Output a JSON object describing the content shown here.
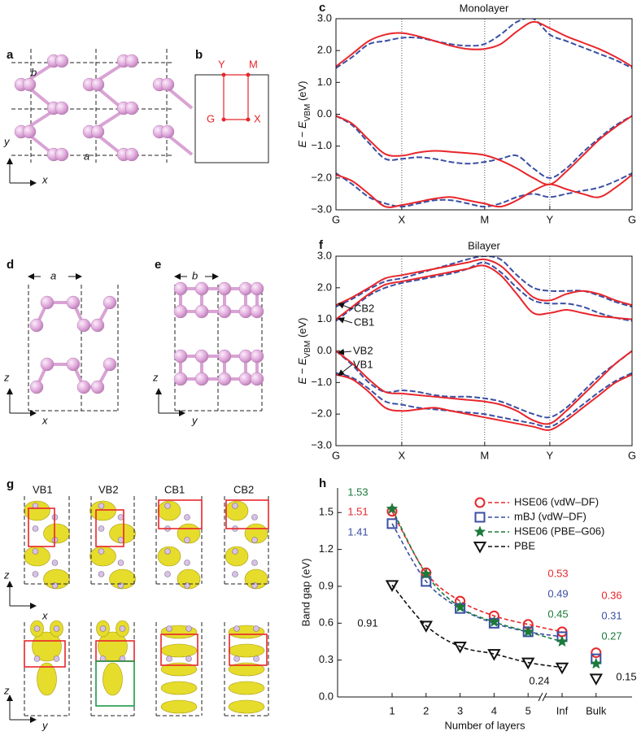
{
  "figure": {
    "a": {
      "panel": "a",
      "lattice": [
        "b",
        "a"
      ],
      "axes": [
        "y",
        "x"
      ]
    },
    "b": {
      "panel": "b",
      "points": [
        "Y",
        "M",
        "G",
        "X"
      ]
    },
    "d": {
      "panel": "d",
      "lattice": "a",
      "axes": [
        "z",
        "x"
      ]
    },
    "e": {
      "panel": "e",
      "lattice": "b",
      "axes": [
        "z",
        "y"
      ]
    },
    "g": {
      "panel": "g",
      "states": [
        "VB1",
        "VB2",
        "CB1",
        "CB2"
      ],
      "axes_top": [
        "z",
        "x"
      ],
      "axes_bottom": [
        "z",
        "y"
      ]
    }
  },
  "chart_data": [
    {
      "type": "line",
      "panel": "c",
      "title": "Monolayer",
      "ylabel": [
        "E − E",
        "VBM",
        " (eV)"
      ],
      "x": [
        0,
        0.25,
        0.5,
        0.75,
        1,
        1.25,
        1.5,
        1.75,
        2,
        2.25,
        2.5,
        2.75,
        3,
        3.25,
        3.5,
        3.75,
        4,
        4.25,
        4.5
      ],
      "xlim": [
        0,
        4.5
      ],
      "xticks": [
        {
          "value": 0,
          "label": "G"
        },
        {
          "value": 1,
          "label": "X"
        },
        {
          "value": 2.26,
          "label": "M"
        },
        {
          "value": 3.25,
          "label": "Y"
        },
        {
          "value": 4.5,
          "label": "G"
        }
      ],
      "ylim": [
        -3,
        3
      ],
      "yticks": [
        {
          "value": 3,
          "label": "3.0"
        },
        {
          "value": 2,
          "label": "2.0"
        },
        {
          "value": 1,
          "label": "1.0"
        },
        {
          "value": 0,
          "label": "0.0"
        },
        {
          "value": -1,
          "label": "−1.0"
        },
        {
          "value": -2,
          "label": "−2.0"
        },
        {
          "value": -3,
          "label": "−3.0"
        }
      ],
      "series": [
        {
          "color": "#3a4fa3",
          "dashed": true,
          "values": [
            1.45,
            1.8,
            2.2,
            2.3,
            2.4,
            2.4,
            2.3,
            2.2,
            2.15,
            2.2,
            2.5,
            2.9,
            3.0,
            2.5,
            2.3,
            2.1,
            1.9,
            1.7,
            1.45
          ]
        },
        {
          "color": "#3a4fa3",
          "dashed": true,
          "values": [
            -0.05,
            -0.35,
            -0.9,
            -1.4,
            -1.4,
            -1.35,
            -1.4,
            -1.5,
            -1.55,
            -1.5,
            -1.4,
            -1.3,
            -1.7,
            -2.0,
            -1.7,
            -1.2,
            -0.75,
            -0.35,
            -0.05
          ]
        },
        {
          "color": "#3a4fa3",
          "dashed": true,
          "values": [
            -1.85,
            -2.2,
            -2.6,
            -2.8,
            -2.9,
            -2.8,
            -2.7,
            -2.7,
            -2.8,
            -2.9,
            -2.8,
            -2.6,
            -2.5,
            -2.6,
            -2.5,
            -2.4,
            -2.3,
            -2.1,
            -1.85
          ]
        },
        {
          "color": "#e8262b",
          "dashed": false,
          "values": [
            1.5,
            1.9,
            2.3,
            2.5,
            2.55,
            2.45,
            2.3,
            2.15,
            2.05,
            2.05,
            2.2,
            2.6,
            2.9,
            2.7,
            2.45,
            2.25,
            2.05,
            1.8,
            1.5
          ]
        },
        {
          "color": "#e8262b",
          "dashed": false,
          "values": [
            -0.05,
            -0.3,
            -0.8,
            -1.25,
            -1.3,
            -1.2,
            -1.15,
            -1.18,
            -1.22,
            -1.28,
            -1.45,
            -1.7,
            -2.0,
            -2.2,
            -1.8,
            -1.3,
            -0.8,
            -0.4,
            -0.05
          ]
        },
        {
          "color": "#e8262b",
          "dashed": false,
          "values": [
            -1.9,
            -2.1,
            -2.5,
            -2.9,
            -2.85,
            -2.75,
            -2.65,
            -2.6,
            -2.7,
            -2.8,
            -2.9,
            -2.7,
            -2.4,
            -2.2,
            -2.35,
            -2.5,
            -2.6,
            -2.3,
            -1.9
          ]
        }
      ]
    },
    {
      "type": "line",
      "panel": "f",
      "title": "Bilayer",
      "ylabel": [
        "E − E",
        "VBM",
        " (eV)"
      ],
      "annotations": [
        "CB2",
        "CB1",
        "VB2",
        "VB1"
      ],
      "x": [
        0,
        0.25,
        0.5,
        0.75,
        1,
        1.25,
        1.5,
        1.75,
        2,
        2.25,
        2.5,
        2.75,
        3,
        3.25,
        3.5,
        3.75,
        4,
        4.25,
        4.5
      ],
      "xlim": [
        0,
        4.5
      ],
      "xticks": [
        {
          "value": 0,
          "label": "G"
        },
        {
          "value": 1,
          "label": "X"
        },
        {
          "value": 2.26,
          "label": "M"
        },
        {
          "value": 3.25,
          "label": "Y"
        },
        {
          "value": 4.5,
          "label": "G"
        }
      ],
      "ylim": [
        -3,
        3
      ],
      "yticks": [
        {
          "value": 3,
          "label": "3.0"
        },
        {
          "value": 2,
          "label": "2.0"
        },
        {
          "value": 1,
          "label": "1.0"
        },
        {
          "value": 0,
          "label": "0.0"
        },
        {
          "value": -1,
          "label": "−1.0"
        },
        {
          "value": -2,
          "label": "−2.0"
        },
        {
          "value": -3,
          "label": "−3.0"
        }
      ],
      "series": [
        {
          "color": "#3a4fa3",
          "dashed": true,
          "values": [
            0.95,
            1.35,
            1.75,
            2.0,
            2.15,
            2.25,
            2.35,
            2.45,
            2.6,
            2.8,
            2.5,
            2.0,
            1.6,
            1.5,
            1.5,
            1.4,
            1.2,
            1.05,
            0.95
          ]
        },
        {
          "color": "#3a4fa3",
          "dashed": true,
          "values": [
            1.4,
            1.65,
            1.95,
            2.2,
            2.3,
            2.45,
            2.6,
            2.75,
            2.9,
            3.0,
            2.9,
            2.4,
            2.0,
            1.9,
            1.9,
            1.9,
            1.75,
            1.55,
            1.4
          ]
        },
        {
          "color": "#3a4fa3",
          "dashed": true,
          "values": [
            0,
            -0.45,
            -1.0,
            -1.3,
            -1.25,
            -1.3,
            -1.4,
            -1.45,
            -1.45,
            -1.5,
            -1.6,
            -1.8,
            -2.0,
            -2.1,
            -1.8,
            -1.3,
            -0.8,
            -0.4,
            0
          ]
        },
        {
          "color": "#3a4fa3",
          "dashed": true,
          "values": [
            -0.7,
            -0.85,
            -1.2,
            -1.6,
            -1.7,
            -1.8,
            -1.85,
            -1.9,
            -1.95,
            -2.0,
            -2.1,
            -2.2,
            -2.3,
            -2.4,
            -2.1,
            -1.7,
            -1.3,
            -0.95,
            -0.7
          ]
        },
        {
          "color": "#e8262b",
          "dashed": false,
          "values": [
            1.0,
            1.4,
            1.8,
            2.1,
            2.2,
            2.3,
            2.4,
            2.5,
            2.6,
            2.7,
            2.4,
            1.8,
            1.2,
            1.2,
            1.3,
            1.2,
            1.1,
            1.05,
            1.0
          ]
        },
        {
          "color": "#e8262b",
          "dashed": false,
          "values": [
            1.45,
            1.7,
            2.0,
            2.3,
            2.4,
            2.5,
            2.6,
            2.7,
            2.8,
            2.9,
            2.7,
            2.2,
            1.7,
            1.6,
            1.8,
            1.9,
            1.8,
            1.6,
            1.45
          ]
        },
        {
          "color": "#e8262b",
          "dashed": false,
          "values": [
            0,
            -0.4,
            -0.9,
            -1.3,
            -1.35,
            -1.4,
            -1.45,
            -1.5,
            -1.55,
            -1.6,
            -1.7,
            -1.9,
            -2.2,
            -2.3,
            -1.9,
            -1.4,
            -0.9,
            -0.4,
            0
          ]
        },
        {
          "color": "#e8262b",
          "dashed": false,
          "values": [
            -0.75,
            -0.9,
            -1.3,
            -1.8,
            -1.9,
            -1.85,
            -1.8,
            -1.9,
            -2.0,
            -2.1,
            -2.2,
            -2.3,
            -2.4,
            -2.5,
            -2.2,
            -1.8,
            -1.4,
            -1.0,
            -0.75
          ]
        }
      ]
    },
    {
      "type": "line",
      "panel": "h",
      "xlabel": "Number of layers",
      "ylabel": "Band gap (eV)",
      "categories": [
        "1",
        "2",
        "3",
        "4",
        "5",
        "Inf",
        "Bulk"
      ],
      "ylim": [
        0,
        1.7
      ],
      "yticks": [
        {
          "value": 0,
          "label": "0.0"
        },
        0.3,
        0.6,
        0.9,
        1.2,
        1.5
      ],
      "legend": "upper right",
      "series": [
        {
          "name": "HSE06 (vdW–DF)",
          "color": "#e8262b",
          "marker": "circle",
          "values": [
            1.51,
            1.01,
            0.78,
            0.66,
            0.59,
            0.53,
            0.36
          ],
          "value_labels": [
            "1.51",
            null,
            null,
            null,
            null,
            "0.53",
            "0.36"
          ]
        },
        {
          "name": "mBJ (vdW–DF)",
          "color": "#3a4fa3",
          "marker": "square",
          "values": [
            1.41,
            0.94,
            0.72,
            0.6,
            0.53,
            0.49,
            0.31
          ],
          "value_labels": [
            "1.41",
            null,
            null,
            null,
            null,
            "0.49",
            "0.31"
          ]
        },
        {
          "name": "HSE06 (PBE–G06)",
          "color": "#1a7a3a",
          "marker": "star",
          "values": [
            1.53,
            1.0,
            0.73,
            0.61,
            0.53,
            0.45,
            0.27
          ],
          "value_labels": [
            "1.53",
            null,
            null,
            null,
            null,
            "0.45",
            "0.27"
          ]
        },
        {
          "name": "PBE",
          "color": "#111111",
          "marker": "triangle-down",
          "values": [
            0.91,
            0.58,
            0.41,
            0.35,
            0.28,
            0.24,
            0.15
          ],
          "value_labels": [
            "0.91",
            null,
            null,
            null,
            null,
            "0.24",
            "0.15"
          ]
        }
      ]
    }
  ]
}
